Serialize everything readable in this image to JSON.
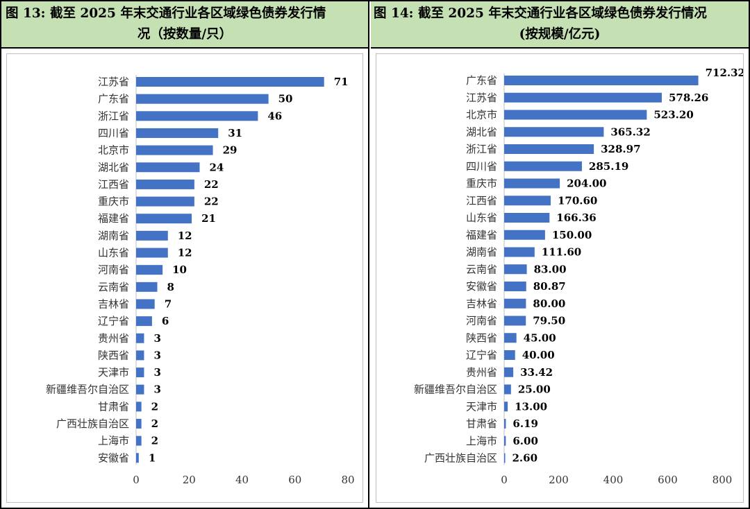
{
  "left_panel": {
    "title_line1": "图 13:  截至 2025 年末交通行业各区域绿色债券发行情",
    "title_line2": "况（按数量/只）"
  },
  "right_panel": {
    "title_line1": "图 14: 截至 2025 年末交通行业各区域绿色债券发行情况",
    "title_line2": "(按规模/亿元)"
  },
  "colors": {
    "bar": "#4472c4",
    "header_bg": "#c5e0b3"
  },
  "chart_data": [
    {
      "type": "bar",
      "orientation": "horizontal",
      "title": "图 13:  截至 2025 年末交通行业各区域绿色债券发行情况（按数量/只）",
      "categories": [
        "江苏省",
        "广东省",
        "浙江省",
        "四川省",
        "北京市",
        "湖北省",
        "江西省",
        "重庆市",
        "福建省",
        "湖南省",
        "山东省",
        "河南省",
        "云南省",
        "吉林省",
        "辽宁省",
        "贵州省",
        "陕西省",
        "天津市",
        "新疆维吾尔自治区",
        "甘肃省",
        "广西壮族自治区",
        "上海市",
        "安徽省"
      ],
      "values": [
        71,
        50,
        46,
        31,
        29,
        24,
        22,
        22,
        21,
        12,
        12,
        10,
        8,
        7,
        6,
        3,
        3,
        3,
        3,
        2,
        2,
        2,
        1
      ],
      "value_labels": [
        "71",
        "50",
        "46",
        "31",
        "29",
        "24",
        "22",
        "22",
        "21",
        "12",
        "12",
        "10",
        "8",
        "7",
        "6",
        "3",
        "3",
        "3",
        "3",
        "2",
        "2",
        "2",
        "1"
      ],
      "xlim": [
        0,
        80
      ],
      "xticks": [
        "0",
        "20",
        "40",
        "60",
        "80"
      ],
      "xtick_values": [
        0,
        20,
        40,
        60,
        80
      ],
      "grid": false,
      "legend": "none"
    },
    {
      "type": "bar",
      "orientation": "horizontal",
      "title": "图 14: 截至 2025 年末交通行业各区域绿色债券发行情况(按规模/亿元)",
      "categories": [
        "广东省",
        "江苏省",
        "北京市",
        "湖北省",
        "浙江省",
        "四川省",
        "重庆市",
        "江西省",
        "山东省",
        "福建省",
        "湖南省",
        "云南省",
        "安徽省",
        "吉林省",
        "河南省",
        "陕西省",
        "辽宁省",
        "贵州省",
        "新疆维吾尔自治区",
        "天津市",
        "甘肃省",
        "上海市",
        "广西壮族自治区"
      ],
      "values": [
        712.32,
        578.26,
        523.2,
        365.32,
        328.97,
        285.19,
        204.0,
        170.6,
        166.36,
        150.0,
        111.6,
        83.0,
        80.87,
        80.0,
        79.5,
        45.0,
        40.0,
        33.42,
        25.0,
        13.0,
        6.19,
        6.0,
        2.6
      ],
      "value_labels": [
        "712.32",
        "578.26",
        "523.20",
        "365.32",
        "328.97",
        "285.19",
        "204.00",
        "170.60",
        "166.36",
        "150.00",
        "111.60",
        "83.00",
        "80.87",
        "80.00",
        "79.50",
        "45.00",
        "40.00",
        "33.42",
        "25.00",
        "13.00",
        "6.19",
        "6.00",
        "2.60"
      ],
      "xlim": [
        0,
        800
      ],
      "xticks": [
        "0",
        "200",
        "400",
        "600",
        "800"
      ],
      "xtick_values": [
        0,
        200,
        400,
        600,
        800
      ],
      "grid": false,
      "legend": "none"
    }
  ]
}
